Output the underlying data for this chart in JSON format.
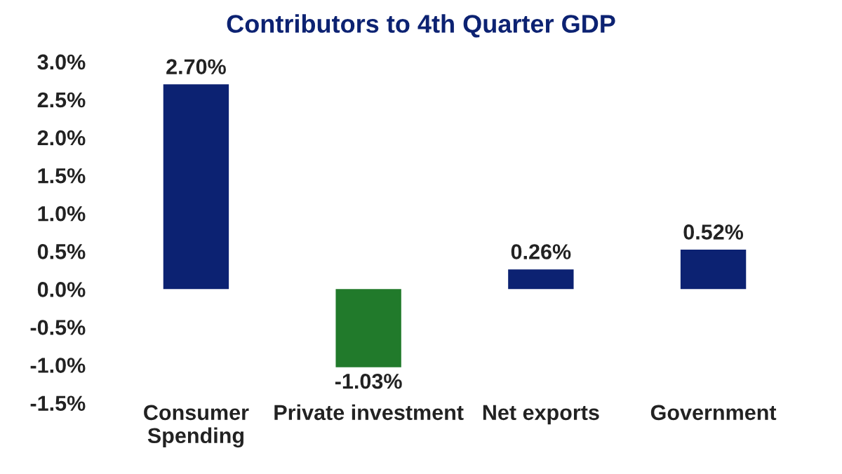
{
  "chart_data": {
    "type": "bar",
    "title": "Contributors to 4th Quarter GDP",
    "categories": [
      "Consumer\nSpending",
      "Private investment",
      "Net exports",
      "Government"
    ],
    "values": [
      2.7,
      -1.03,
      0.26,
      0.52
    ],
    "colors": [
      "#0c2272",
      "#217a2b",
      "#0c2272",
      "#0c2272"
    ],
    "value_labels": [
      "2.70%",
      "-1.03%",
      "0.26%",
      "0.52%"
    ],
    "ylim": [
      -1.5,
      3.0
    ],
    "yticks": [
      {
        "value": -1.5,
        "label": "-1.5%"
      },
      {
        "value": -1.0,
        "label": "-1.0%"
      },
      {
        "value": -0.5,
        "label": "-0.5%"
      },
      {
        "value": 0.0,
        "label": "0.0%"
      },
      {
        "value": 0.5,
        "label": "0.5%"
      },
      {
        "value": 1.0,
        "label": "1.0%"
      },
      {
        "value": 1.5,
        "label": "1.5%"
      },
      {
        "value": 2.0,
        "label": "2.0%"
      },
      {
        "value": 2.5,
        "label": "2.5%"
      },
      {
        "value": 3.0,
        "label": "3.0%"
      }
    ],
    "grid": false,
    "legend": false
  }
}
